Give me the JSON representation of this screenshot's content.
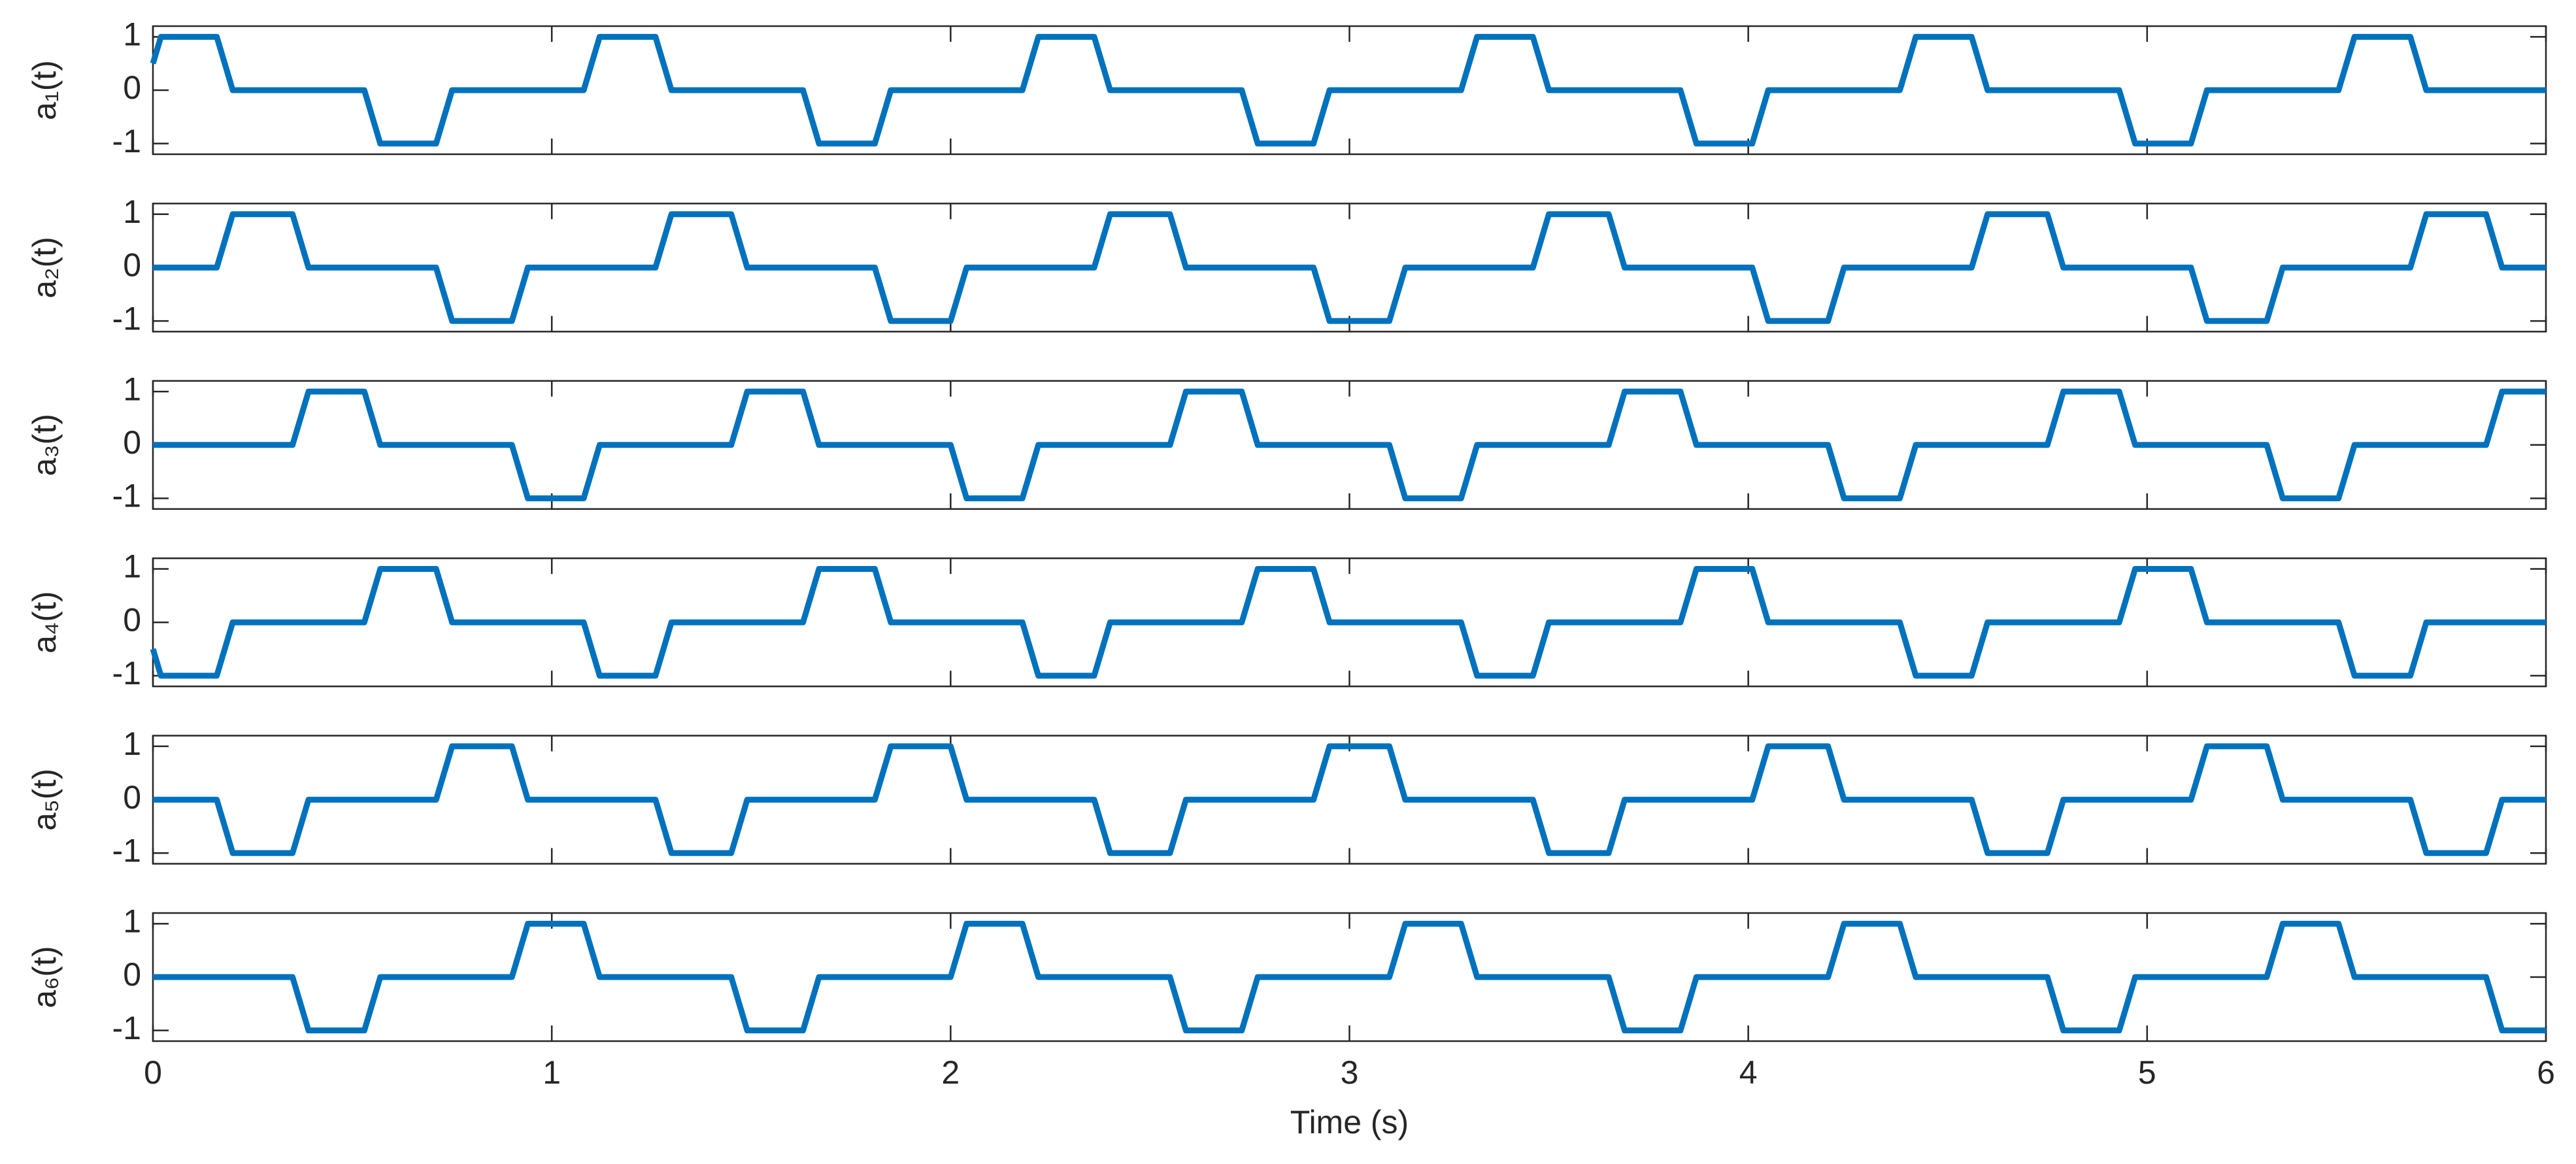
{
  "chart_data": [
    {
      "type": "line",
      "ylabel": "a₁(t)",
      "color": "#0072bd",
      "xlim": [
        0,
        6
      ],
      "xticks": [
        0,
        1,
        2,
        3,
        4,
        5,
        6
      ],
      "ylim": [
        -1.2,
        1.2
      ],
      "yticks": [
        -1,
        0,
        1
      ],
      "x": [
        0,
        0.02,
        0.16,
        0.2,
        0.53,
        0.57,
        0.71,
        0.75,
        1.08,
        1.12,
        1.26,
        1.3,
        1.63,
        1.67,
        1.81,
        1.85,
        2.18,
        2.22,
        2.36,
        2.4,
        2.73,
        2.77,
        2.91,
        2.95,
        3.28,
        3.32,
        3.46,
        3.5,
        3.83,
        3.87,
        4.01,
        4.05,
        4.38,
        4.42,
        4.56,
        4.6,
        4.93,
        4.97,
        5.11,
        5.15,
        5.48,
        5.52,
        5.66,
        5.7,
        6
      ],
      "values": [
        0.5,
        1,
        1,
        0,
        0,
        -1,
        -1,
        0,
        0,
        1,
        1,
        0,
        0,
        -1,
        -1,
        0,
        0,
        1,
        1,
        0,
        0,
        -1,
        -1,
        0,
        0,
        1,
        1,
        0,
        0,
        -1,
        -1,
        0,
        0,
        1,
        1,
        0,
        0,
        -1,
        -1,
        0,
        0,
        1,
        1,
        0,
        0
      ]
    },
    {
      "type": "line",
      "ylabel": "a₂(t)",
      "color": "#0072bd",
      "xlim": [
        0,
        6
      ],
      "xticks": [
        0,
        1,
        2,
        3,
        4,
        5,
        6
      ],
      "ylim": [
        -1.2,
        1.2
      ],
      "yticks": [
        -1,
        0,
        1
      ],
      "x": [
        0,
        0.16,
        0.2,
        0.35,
        0.39,
        0.71,
        0.75,
        0.9,
        0.94,
        1.26,
        1.3,
        1.45,
        1.49,
        1.81,
        1.85,
        2,
        2.04,
        2.36,
        2.4,
        2.55,
        2.59,
        2.91,
        2.95,
        3.1,
        3.14,
        3.46,
        3.5,
        3.65,
        3.69,
        4.01,
        4.05,
        4.2,
        4.24,
        4.56,
        4.6,
        4.75,
        4.79,
        5.11,
        5.15,
        5.3,
        5.34,
        5.66,
        5.7,
        5.85,
        5.89,
        6
      ],
      "values": [
        0,
        0,
        1,
        1,
        0,
        0,
        -1,
        -1,
        0,
        0,
        1,
        1,
        0,
        0,
        -1,
        -1,
        0,
        0,
        1,
        1,
        0,
        0,
        -1,
        -1,
        0,
        0,
        1,
        1,
        0,
        0,
        -1,
        -1,
        0,
        0,
        1,
        1,
        0,
        0,
        -1,
        -1,
        0,
        0,
        1,
        1,
        0,
        0
      ]
    },
    {
      "type": "line",
      "ylabel": "a₃(t)",
      "color": "#0072bd",
      "xlim": [
        0,
        6
      ],
      "xticks": [
        0,
        1,
        2,
        3,
        4,
        5,
        6
      ],
      "ylim": [
        -1.2,
        1.2
      ],
      "yticks": [
        -1,
        0,
        1
      ],
      "x": [
        0,
        0.35,
        0.39,
        0.53,
        0.57,
        0.9,
        0.94,
        1.08,
        1.12,
        1.45,
        1.49,
        1.63,
        1.67,
        2,
        2.04,
        2.18,
        2.22,
        2.55,
        2.59,
        2.73,
        2.77,
        3.1,
        3.14,
        3.28,
        3.32,
        3.65,
        3.69,
        3.83,
        3.87,
        4.2,
        4.24,
        4.38,
        4.42,
        4.75,
        4.79,
        4.93,
        4.97,
        5.3,
        5.34,
        5.48,
        5.52,
        5.85,
        5.89,
        6
      ],
      "values": [
        0,
        0,
        1,
        1,
        0,
        0,
        -1,
        -1,
        0,
        0,
        1,
        1,
        0,
        0,
        -1,
        -1,
        0,
        0,
        1,
        1,
        0,
        0,
        -1,
        -1,
        0,
        0,
        1,
        1,
        0,
        0,
        -1,
        -1,
        0,
        0,
        1,
        1,
        0,
        0,
        -1,
        -1,
        0,
        0,
        1,
        1
      ]
    },
    {
      "type": "line",
      "ylabel": "a₄(t)",
      "color": "#0072bd",
      "xlim": [
        0,
        6
      ],
      "xticks": [
        0,
        1,
        2,
        3,
        4,
        5,
        6
      ],
      "ylim": [
        -1.2,
        1.2
      ],
      "yticks": [
        -1,
        0,
        1
      ],
      "x": [
        0,
        0.02,
        0.16,
        0.2,
        0.53,
        0.57,
        0.71,
        0.75,
        1.08,
        1.12,
        1.26,
        1.3,
        1.63,
        1.67,
        1.81,
        1.85,
        2.18,
        2.22,
        2.36,
        2.4,
        2.73,
        2.77,
        2.91,
        2.95,
        3.28,
        3.32,
        3.46,
        3.5,
        3.83,
        3.87,
        4.01,
        4.05,
        4.38,
        4.42,
        4.56,
        4.6,
        4.93,
        4.97,
        5.11,
        5.15,
        5.48,
        5.52,
        5.66,
        5.7,
        6
      ],
      "values": [
        -0.5,
        -1,
        -1,
        0,
        0,
        1,
        1,
        0,
        0,
        -1,
        -1,
        0,
        0,
        1,
        1,
        0,
        0,
        -1,
        -1,
        0,
        0,
        1,
        1,
        0,
        0,
        -1,
        -1,
        0,
        0,
        1,
        1,
        0,
        0,
        -1,
        -1,
        0,
        0,
        1,
        1,
        0,
        0,
        -1,
        -1,
        0,
        0
      ]
    },
    {
      "type": "line",
      "ylabel": "a₅(t)",
      "color": "#0072bd",
      "xlim": [
        0,
        6
      ],
      "xticks": [
        0,
        1,
        2,
        3,
        4,
        5,
        6
      ],
      "ylim": [
        -1.2,
        1.2
      ],
      "yticks": [
        -1,
        0,
        1
      ],
      "x": [
        0,
        0.16,
        0.2,
        0.35,
        0.39,
        0.71,
        0.75,
        0.9,
        0.94,
        1.26,
        1.3,
        1.45,
        1.49,
        1.81,
        1.85,
        2,
        2.04,
        2.36,
        2.4,
        2.55,
        2.59,
        2.91,
        2.95,
        3.1,
        3.14,
        3.46,
        3.5,
        3.65,
        3.69,
        4.01,
        4.05,
        4.2,
        4.24,
        4.56,
        4.6,
        4.75,
        4.79,
        5.11,
        5.15,
        5.3,
        5.34,
        5.66,
        5.7,
        5.85,
        5.89,
        6
      ],
      "values": [
        0,
        0,
        -1,
        -1,
        0,
        0,
        1,
        1,
        0,
        0,
        -1,
        -1,
        0,
        0,
        1,
        1,
        0,
        0,
        -1,
        -1,
        0,
        0,
        1,
        1,
        0,
        0,
        -1,
        -1,
        0,
        0,
        1,
        1,
        0,
        0,
        -1,
        -1,
        0,
        0,
        1,
        1,
        0,
        0,
        -1,
        -1,
        0,
        0
      ]
    },
    {
      "type": "line",
      "ylabel": "a₆(t)",
      "color": "#0072bd",
      "xlim": [
        0,
        6
      ],
      "xticks": [
        0,
        1,
        2,
        3,
        4,
        5,
        6
      ],
      "ylim": [
        -1.2,
        1.2
      ],
      "yticks": [
        -1,
        0,
        1
      ],
      "xlabel": "Time (s)",
      "x": [
        0,
        0.35,
        0.39,
        0.53,
        0.57,
        0.9,
        0.94,
        1.08,
        1.12,
        1.45,
        1.49,
        1.63,
        1.67,
        2,
        2.04,
        2.18,
        2.22,
        2.55,
        2.59,
        2.73,
        2.77,
        3.1,
        3.14,
        3.28,
        3.32,
        3.65,
        3.69,
        3.83,
        3.87,
        4.2,
        4.24,
        4.38,
        4.42,
        4.75,
        4.79,
        4.93,
        4.97,
        5.3,
        5.34,
        5.48,
        5.52,
        5.85,
        5.89,
        6
      ],
      "values": [
        0,
        0,
        -1,
        -1,
        0,
        0,
        1,
        1,
        0,
        0,
        -1,
        -1,
        0,
        0,
        1,
        1,
        0,
        0,
        -1,
        -1,
        0,
        0,
        1,
        1,
        0,
        0,
        -1,
        -1,
        0,
        0,
        1,
        1,
        0,
        0,
        -1,
        -1,
        0,
        0,
        1,
        1,
        0,
        0,
        -1,
        -1
      ]
    }
  ]
}
